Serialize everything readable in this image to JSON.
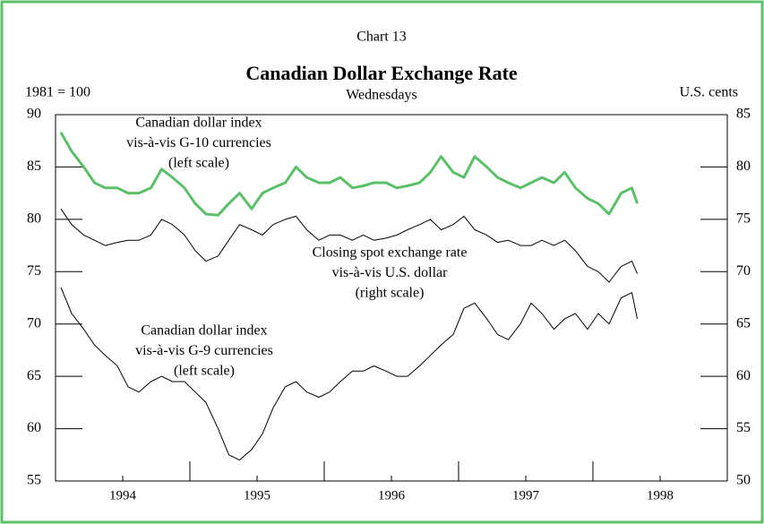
{
  "chart_data": {
    "type": "line",
    "kicker": "Chart 13",
    "title": "Canadian Dollar Exchange Rate",
    "subtitle": "Wednesdays",
    "ylabel": "1981 = 100",
    "y2label": "U.S. cents",
    "x": [
      1994.04,
      1994.12,
      1994.21,
      1994.29,
      1994.37,
      1994.46,
      1994.54,
      1994.62,
      1994.71,
      1994.79,
      1994.87,
      1994.96,
      1995.04,
      1995.12,
      1995.21,
      1995.29,
      1995.37,
      1995.46,
      1995.54,
      1995.62,
      1995.71,
      1995.79,
      1995.87,
      1995.96,
      1996.04,
      1996.12,
      1996.21,
      1996.29,
      1996.37,
      1996.46,
      1996.54,
      1996.62,
      1996.71,
      1996.79,
      1996.87,
      1996.96,
      1997.04,
      1997.12,
      1997.21,
      1997.29,
      1997.37,
      1997.46,
      1997.54,
      1997.62,
      1997.71,
      1997.79,
      1997.87,
      1997.96,
      1998.04,
      1998.12,
      1998.21,
      1998.29,
      1998.33
    ],
    "series": [
      {
        "name": "Canadian dollar index vis-à-vis G-10 currencies (left scale)",
        "color": "#5cbf6a",
        "width": 3,
        "values": [
          88.3,
          86.5,
          85,
          83.5,
          83,
          83,
          82.5,
          82.5,
          83,
          84.8,
          84,
          83,
          81.5,
          80.5,
          80.4,
          81.5,
          82.5,
          81,
          82.5,
          83,
          83.5,
          85,
          84,
          83.5,
          83.5,
          84,
          83,
          83.2,
          83.5,
          83.5,
          83,
          83.2,
          83.5,
          84.5,
          86,
          84.5,
          84,
          86,
          85,
          84,
          83.5,
          83,
          83.5,
          84,
          83.5,
          84.5,
          83,
          82,
          81.5,
          80.5,
          82.5,
          83,
          81.5
        ]
      },
      {
        "name": "Closing spot exchange rate vis-à-vis U.S. dollar (right scale)",
        "color": "#000000",
        "width": 1,
        "axis": "y2",
        "values": [
          76,
          74.5,
          73.5,
          73,
          72.5,
          72.8,
          73,
          73,
          73.5,
          75,
          74.5,
          73.5,
          72,
          71,
          71.5,
          73,
          74.5,
          74,
          73.5,
          74.5,
          75,
          75.3,
          74,
          73,
          73.5,
          73.5,
          73,
          73.5,
          73,
          73.2,
          73.5,
          74,
          74.5,
          75,
          74,
          74.5,
          75.3,
          74,
          73.5,
          72.8,
          73,
          72.5,
          72.5,
          73,
          72.5,
          73,
          72,
          70.5,
          70,
          69,
          70.5,
          71,
          69.8
        ]
      },
      {
        "name": "Canadian dollar index vis-à-vis G-9 currencies (left scale)",
        "color": "#000000",
        "width": 1,
        "values": [
          73.5,
          71,
          69.5,
          68,
          67,
          66,
          64,
          63.5,
          64.5,
          65,
          64.5,
          64.5,
          63.5,
          62.5,
          60,
          57.5,
          57,
          58,
          59.5,
          62,
          64,
          64.5,
          63.5,
          63,
          63.5,
          64.5,
          65.5,
          65.5,
          66,
          65.5,
          65,
          65,
          66,
          67,
          68,
          69,
          71.5,
          72,
          70.5,
          69,
          68.5,
          70,
          72,
          71,
          69.5,
          70.5,
          71,
          69.5,
          71,
          70,
          72.5,
          73,
          70.5
        ]
      }
    ],
    "annotations": [
      {
        "lines": [
          "Canadian dollar index",
          "vis-à-vis G-10 currencies",
          "(left scale)"
        ]
      },
      {
        "lines": [
          "Closing spot exchange rate",
          "vis-à-vis U.S. dollar",
          "(right scale)"
        ]
      },
      {
        "lines": [
          "Canadian dollar index",
          "vis-à-vis G-9 currencies",
          "(left scale)"
        ]
      }
    ],
    "xlim": [
      1994,
      1999
    ],
    "xticks": [
      {
        "value": 1994.5,
        "label": "1994"
      },
      {
        "value": 1995.5,
        "label": "1995"
      },
      {
        "value": 1996.5,
        "label": "1996"
      },
      {
        "value": 1997.5,
        "label": "1997"
      },
      {
        "value": 1998.5,
        "label": "1998"
      }
    ],
    "xminorticks": [
      1995,
      1996,
      1997,
      1998
    ],
    "ylim": [
      55,
      90
    ],
    "yticks": [
      55,
      60,
      65,
      70,
      75,
      80,
      85,
      90
    ],
    "y2lim": [
      50,
      85
    ],
    "y2ticks": [
      50,
      55,
      60,
      65,
      70,
      75,
      80,
      85
    ]
  }
}
